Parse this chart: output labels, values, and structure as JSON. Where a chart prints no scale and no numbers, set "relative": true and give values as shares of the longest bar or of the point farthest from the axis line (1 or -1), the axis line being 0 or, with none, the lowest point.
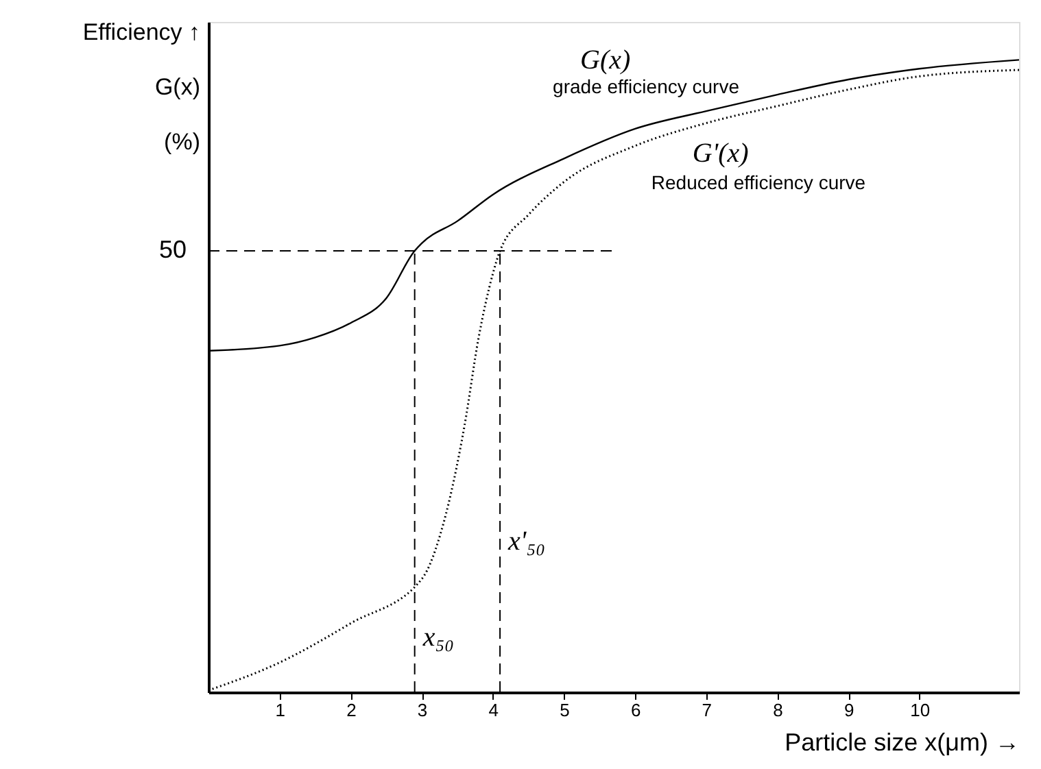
{
  "chart_data": {
    "type": "line",
    "relative": true,
    "xlabel": "Particle size   x(μm) →",
    "ylabel": "Efficiency ↑\nG(x)\n(%)",
    "xlim": [
      0,
      11.4
    ],
    "xticks": [
      1,
      2,
      3,
      4,
      5,
      6,
      7,
      8,
      9,
      10
    ],
    "tick_labels": "x",
    "grid": false,
    "legend": false,
    "series": [
      {
        "name": "G(x)",
        "color": "#000000",
        "line_style": "solid",
        "x": [
          0,
          1,
          1.5,
          2,
          2.5,
          2.9,
          3,
          3.5,
          4,
          5,
          6,
          7,
          8,
          9,
          10,
          11.4
        ],
        "values": [
          0.54,
          0.548,
          0.561,
          0.584,
          0.623,
          0.698,
          0.71,
          0.745,
          0.787,
          0.844,
          0.891,
          0.919,
          0.945,
          0.969,
          0.986,
          1.0
        ]
      },
      {
        "name": "G'(x)",
        "color": "#000000",
        "line_style": "dotted",
        "x": [
          0,
          1,
          2,
          3,
          3.3,
          3.6,
          3.8,
          4.0,
          4.1,
          4.5,
          5,
          6,
          7,
          8,
          9,
          10,
          11.4
        ],
        "values": [
          0.003,
          0.047,
          0.109,
          0.179,
          0.265,
          0.421,
          0.561,
          0.662,
          0.698,
          0.755,
          0.807,
          0.864,
          0.9,
          0.927,
          0.953,
          0.974,
          0.984
        ]
      }
    ],
    "annotations": [
      "grade efficiency curve",
      "Reduced efficiency curve",
      "50"
    ],
    "ref_lines": [
      {
        "axis": "y",
        "value": 0.698,
        "line_style": "dashed"
      },
      {
        "axis": "x",
        "value": 2.9,
        "label": "x₅₀",
        "line_style": "dashed"
      },
      {
        "axis": "x",
        "value": 4.1,
        "label": "x'₅₀",
        "line_style": "dashed"
      }
    ]
  }
}
